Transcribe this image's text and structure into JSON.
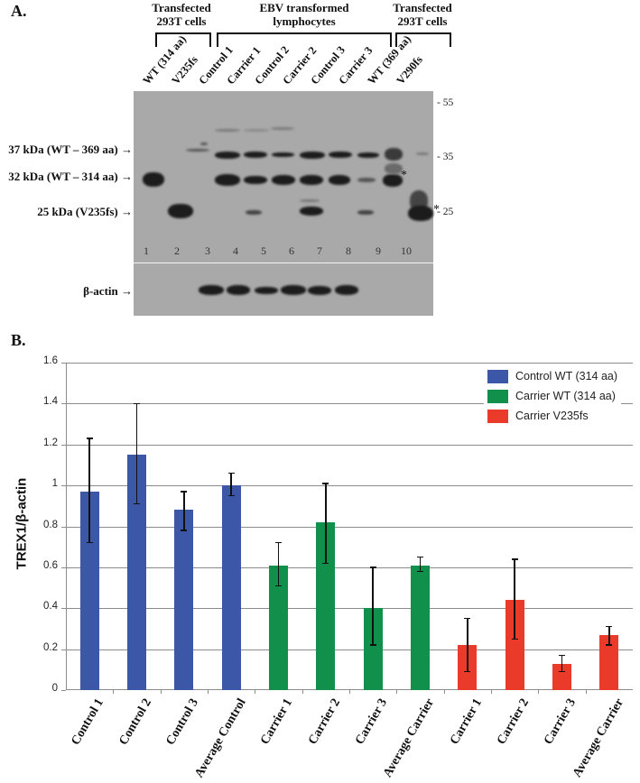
{
  "panel_a": {
    "letter": "A.",
    "groups": [
      {
        "line1": "Transfected",
        "line2": "293T cells"
      },
      {
        "line1": "EBV transformed",
        "line2": "lymphocytes"
      },
      {
        "line1": "Transfected",
        "line2": "293T cells"
      }
    ],
    "lanes": [
      "WT (314 aa)",
      "V235fs",
      "Control 1",
      "Carrier 1",
      "Control 2",
      "Carrier 2",
      "Control 3",
      "Carrier 3",
      "WT (369 aa)",
      "V290fs"
    ],
    "lane_numbers": [
      "1",
      "2",
      "3",
      "4",
      "5",
      "6",
      "7",
      "8",
      "9",
      "10"
    ],
    "band_labels": [
      "37 kDa (WT – 369 aa) →",
      "32 kDa (WT – 314 aa) →",
      "25 kDa (V235fs) →"
    ],
    "loading_label": "β-actin →",
    "mw_markers": [
      "- 55",
      "- 35",
      "- 25"
    ],
    "asterisk": "*"
  },
  "panel_b": {
    "letter": "B.",
    "legend": [
      {
        "label": "Control WT (314 aa)",
        "color": "#3c56a8"
      },
      {
        "label": "Carrier WT (314 aa)",
        "color": "#10904a"
      },
      {
        "label": "Carrier V235fs",
        "color": "#ea3a2a"
      }
    ],
    "y_ticks": [
      "1.6",
      "1.4",
      "1.2",
      "1",
      "0.8",
      "0.6",
      "0.4",
      "0.2",
      "0"
    ],
    "ylabel": "TREX1/β-actin"
  },
  "chart_data": {
    "type": "bar",
    "title": "",
    "xlabel": "",
    "ylabel": "TREX1/β-actin",
    "ylim": [
      0,
      1.6
    ],
    "grid": true,
    "legend_position": "top-right",
    "categories": [
      "Control 1",
      "Control 2",
      "Control 3",
      "Average Control",
      "Carrier 1",
      "Carrier 2",
      "Carrier 3",
      "Average Carrier",
      "Carrier 1",
      "Carrier 2",
      "Carrier 3",
      "Average Carrier"
    ],
    "series": [
      {
        "name": "Control WT (314 aa)",
        "color": "#3c56a8",
        "indices": [
          0,
          1,
          2,
          3
        ],
        "values": [
          0.97,
          1.15,
          0.88,
          1.0
        ],
        "error_low": [
          0.72,
          0.91,
          0.78,
          0.95
        ],
        "error_high": [
          1.23,
          1.4,
          0.97,
          1.06
        ]
      },
      {
        "name": "Carrier WT (314 aa)",
        "color": "#10904a",
        "indices": [
          4,
          5,
          6,
          7
        ],
        "values": [
          0.61,
          0.82,
          0.4,
          0.61
        ],
        "error_low": [
          0.51,
          0.62,
          0.22,
          0.58
        ],
        "error_high": [
          0.72,
          1.01,
          0.6,
          0.65
        ]
      },
      {
        "name": "Carrier V235fs",
        "color": "#ea3a2a",
        "indices": [
          8,
          9,
          10,
          11
        ],
        "values": [
          0.22,
          0.44,
          0.13,
          0.27
        ],
        "error_low": [
          0.09,
          0.25,
          0.09,
          0.22
        ],
        "error_high": [
          0.35,
          0.64,
          0.17,
          0.31
        ]
      }
    ]
  }
}
